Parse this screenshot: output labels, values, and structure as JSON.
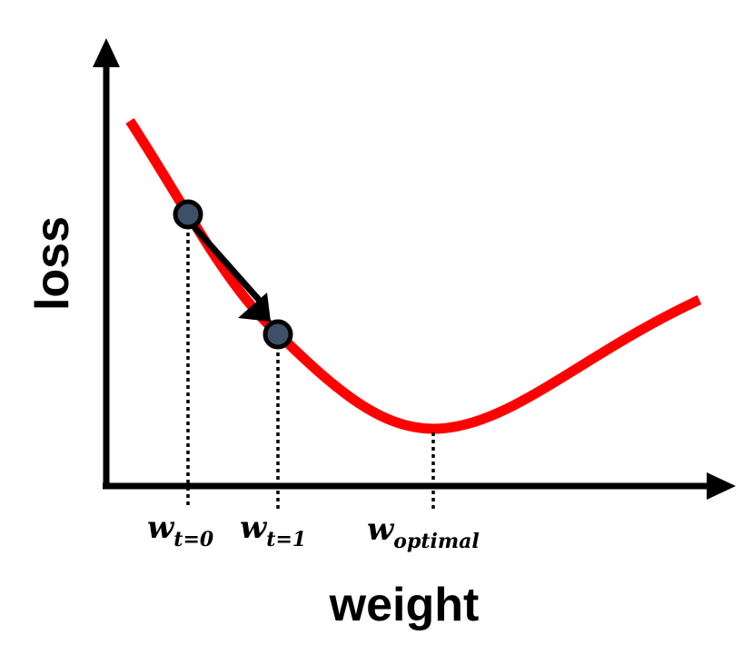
{
  "diagram": {
    "x_axis_title": "weight",
    "y_axis_title": "loss",
    "colors": {
      "axis": "#000000",
      "curve": "#ff0000",
      "point_fill": "#3d5068",
      "point_stroke": "#000000",
      "arrow": "#000000"
    },
    "markers": [
      {
        "symbol": "w",
        "subscript": "t=0"
      },
      {
        "symbol": "w",
        "subscript": "t=1"
      },
      {
        "symbol": "w",
        "subscript": "optimal"
      }
    ]
  }
}
